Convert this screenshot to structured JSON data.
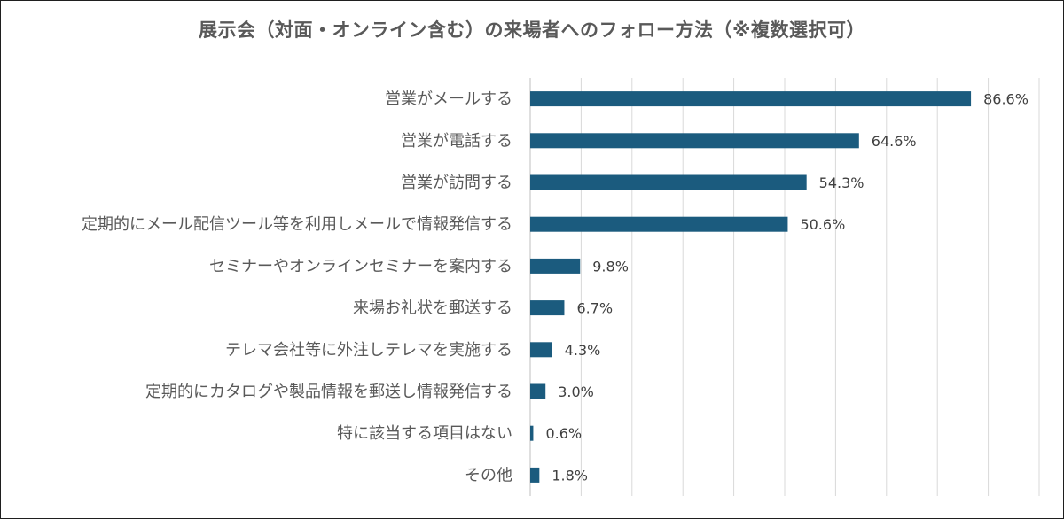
{
  "chart_data": {
    "type": "bar",
    "orientation": "horizontal",
    "title": "展示会（対面・オンライン含む）の来場者へのフォロー方法（※複数選択可）",
    "xlabel": "",
    "ylabel": "",
    "xlim": [
      0,
      100
    ],
    "grid": true,
    "legend": "none",
    "bar_color": "#1b5b7e",
    "categories": [
      "営業がメールする",
      "営業が電話する",
      "営業が訪問する",
      "定期的にメール配信ツール等を利用しメールで情報発信する",
      "セミナーやオンラインセミナーを案内する",
      "来場お礼状を郵送する",
      "テレマ会社等に外注しテレマを実施する",
      "定期的にカタログや製品情報を郵送し情報発信する",
      "特に該当する項目はない",
      "その他"
    ],
    "values": [
      86.6,
      64.6,
      54.3,
      50.6,
      9.8,
      6.7,
      4.3,
      3.0,
      0.6,
      1.8
    ],
    "value_labels": [
      "86.6%",
      "64.6%",
      "54.3%",
      "50.6%",
      "9.8%",
      "6.7%",
      "4.3%",
      "3.0%",
      "0.6%",
      "1.8%"
    ]
  }
}
